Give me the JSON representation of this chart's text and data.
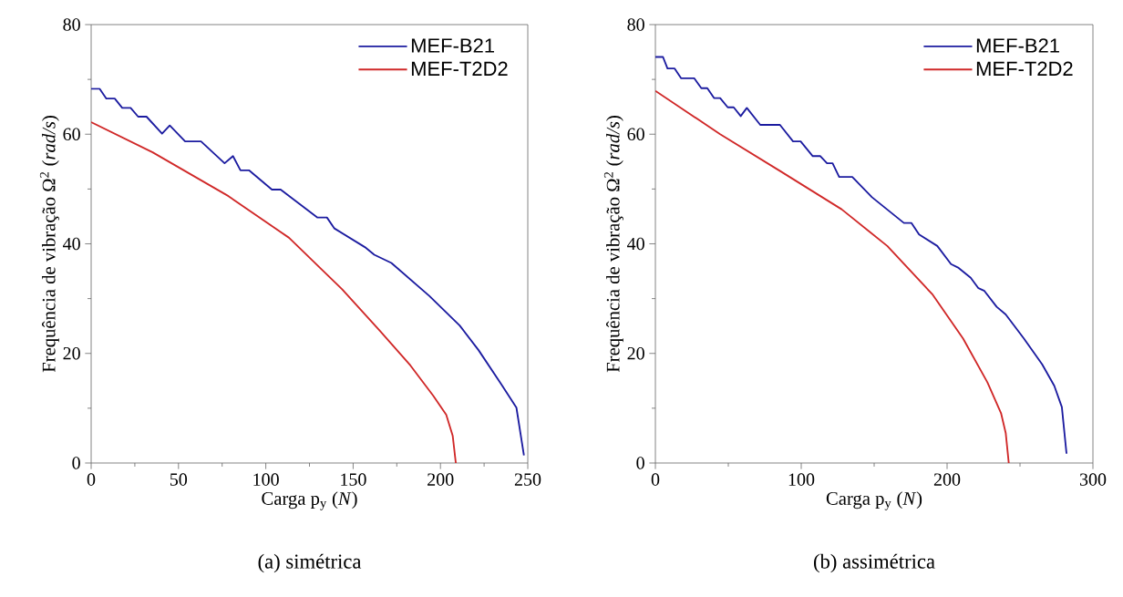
{
  "chart_data": [
    {
      "type": "line",
      "xlabel": "Carga p$_{y}$ (*N*)",
      "ylabel": "Frequência de vibração Ω$^{2}$ (*rad/s*)",
      "annotations": [
        "(a) simétrica"
      ],
      "xlim": [
        0,
        250
      ],
      "ylim": [
        0,
        80
      ],
      "xticks": [
        0,
        50,
        100,
        150,
        200,
        250
      ],
      "yticks": [
        0,
        20,
        40,
        60,
        80
      ],
      "legend": "top right",
      "grid": false,
      "marker": "none",
      "line_style": "solid",
      "series": [
        {
          "name": "MEF-B21",
          "color": "#1c1ca0",
          "x": [
            0,
            4.8,
            8.7,
            13.5,
            17.8,
            22.6,
            26.9,
            31.7,
            40.6,
            45,
            53.8,
            62.9,
            76.4,
            81.2,
            85.5,
            90.5,
            103.5,
            108.5,
            129.6,
            135,
            139.3,
            156.7,
            162.1,
            171.9,
            193.6,
            211,
            221.8,
            234.8,
            243.5,
            247.8
          ],
          "values": [
            68.3,
            68.3,
            66.5,
            66.5,
            64.8,
            64.8,
            63.2,
            63.2,
            60.1,
            61.6,
            58.7,
            58.7,
            54.7,
            56.0,
            53.4,
            53.4,
            49.9,
            49.9,
            44.8,
            44.8,
            42.8,
            39.4,
            38.0,
            36.5,
            30.5,
            25.1,
            20.6,
            14.4,
            10.1,
            1.4
          ]
        },
        {
          "name": "MEF-T2D2",
          "color": "#d02828",
          "x": [
            0,
            35.2,
            78.6,
            113.3,
            143.7,
            165.4,
            182.8,
            195.8,
            203.3,
            207,
            208.8
          ],
          "values": [
            62.2,
            56.7,
            48.7,
            41.1,
            31.7,
            24.1,
            17.8,
            12.3,
            8.8,
            5.0,
            0
          ]
        }
      ]
    },
    {
      "type": "line",
      "xlabel": "Carga p$_{y}$ (*N*)",
      "ylabel": "Frequência de vibração Ω$^{2}$ (*rad/s*)",
      "annotations": [
        "(b) assimétrica"
      ],
      "xlim": [
        0,
        300
      ],
      "ylim": [
        0,
        80
      ],
      "xticks": [
        0,
        100,
        200,
        300
      ],
      "yticks": [
        0,
        20,
        40,
        60,
        80
      ],
      "legend": "top right",
      "grid": false,
      "marker": "none",
      "line_style": "solid",
      "series": [
        {
          "name": "MEF-B21",
          "color": "#1c1ca0",
          "x": [
            0,
            5.2,
            8.3,
            13.1,
            17.7,
            26.7,
            31.5,
            35.6,
            40.2,
            44.4,
            49.6,
            53.7,
            58.5,
            62.7,
            71.9,
            85.4,
            94.4,
            99.6,
            107.9,
            113.1,
            117.7,
            121.5,
            126,
            135,
            148.5,
            170.4,
            175.6,
            180.8,
            193.3,
            202.7,
            207.9,
            216.2,
            221.5,
            225.6,
            234,
            240.2,
            252.7,
            265.2,
            273.5,
            278.7,
            281.9
          ],
          "values": [
            74.1,
            74.1,
            72.0,
            72.0,
            70.2,
            70.2,
            68.4,
            68.4,
            66.6,
            66.6,
            64.9,
            64.9,
            63.3,
            64.8,
            61.7,
            61.7,
            58.7,
            58.7,
            56.0,
            56.0,
            54.7,
            54.7,
            52.2,
            52.2,
            48.5,
            43.8,
            43.8,
            41.7,
            39.6,
            36.3,
            35.6,
            33.8,
            31.9,
            31.4,
            28.5,
            27.1,
            22.7,
            18.0,
            14.1,
            10.2,
            1.7
          ]
        },
        {
          "name": "MEF-T2D2",
          "color": "#d02828",
          "x": [
            0,
            44.4,
            86,
            127.7,
            159,
            190.2,
            211,
            227.7,
            237,
            240.2,
            242.3
          ],
          "values": [
            67.9,
            60.0,
            53.2,
            46.3,
            39.6,
            30.7,
            22.7,
            14.7,
            9.1,
            5.5,
            0
          ]
        }
      ]
    }
  ]
}
